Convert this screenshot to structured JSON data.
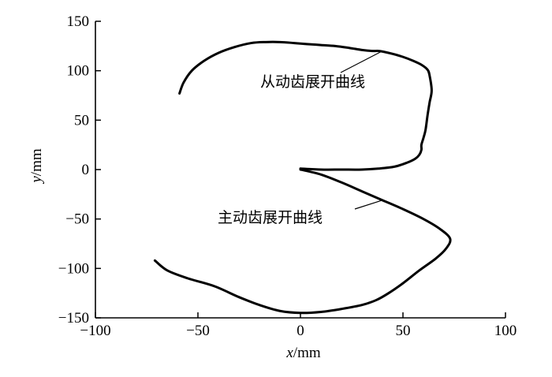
{
  "chart_data": {
    "type": "line",
    "title": "",
    "xlabel_var": "x",
    "xlabel_unit": "/mm",
    "ylabel_var": "y",
    "ylabel_unit": "/mm",
    "xlim": [
      -100,
      100
    ],
    "ylim": [
      -150,
      150
    ],
    "xticks": [
      -100,
      -50,
      0,
      50,
      100
    ],
    "yticks": [
      -150,
      -100,
      -50,
      0,
      50,
      100,
      150
    ],
    "grid": false,
    "legend": "none",
    "line_color": "#000000",
    "series": [
      {
        "name": "从动齿展开曲线",
        "x": [
          -59,
          -57,
          -53,
          -47,
          -40,
          -32,
          -24,
          -17,
          -10,
          -3,
          3,
          10,
          17,
          24,
          30,
          35,
          38,
          41,
          45,
          50,
          55,
          59,
          62,
          63,
          64,
          63,
          62,
          61,
          60,
          59,
          59,
          58,
          56,
          52,
          46,
          38,
          30,
          20,
          10,
          0
        ],
        "y": [
          77,
          88,
          100,
          110,
          118,
          124,
          128,
          129,
          129,
          128,
          127,
          126,
          125,
          123,
          121,
          120,
          120,
          119,
          117,
          114,
          110,
          106,
          101,
          95,
          80,
          68,
          55,
          40,
          32,
          25,
          20,
          15,
          11,
          7,
          3,
          1,
          0,
          0,
          0,
          1
        ]
      },
      {
        "name": "主动齿展开曲线",
        "x": [
          0,
          10,
          20,
          30,
          40,
          50,
          60,
          68,
          73,
          71,
          66,
          58,
          50,
          43,
          37,
          30,
          20,
          10,
          0,
          -10,
          -20,
          -30,
          -42,
          -55,
          -65,
          -71
        ],
        "y": [
          0,
          -5,
          -13,
          -22,
          -31,
          -40,
          -50,
          -60,
          -70,
          -80,
          -90,
          -102,
          -115,
          -125,
          -132,
          -137,
          -141,
          -144,
          -145,
          -143,
          -137,
          -129,
          -118,
          -110,
          -102,
          -92
        ]
      }
    ],
    "annotations": [
      {
        "text": "从动齿展开曲线",
        "series": 0,
        "point_x": 40,
        "point_y": 120
      },
      {
        "text": "主动齿展开曲线",
        "series": 1,
        "point_x": 40,
        "point_y": -31
      }
    ]
  }
}
